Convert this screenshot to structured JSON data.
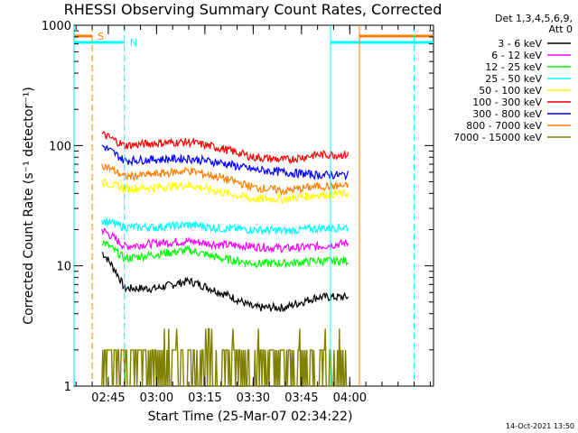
{
  "chart_data": {
    "type": "line",
    "title": "RHESSI Observing Summary Count Rates, Corrected",
    "xlabel": "Start Time (25-Mar-07 02:34:22)",
    "ylabel": "Corrected Count Rate (s⁻¹ detector⁻¹)",
    "x_axis_start": "02:34:22",
    "x_axis_end": "04:26:00",
    "xticks": [
      "02:45",
      "03:00",
      "03:15",
      "03:30",
      "03:45",
      "04:00"
    ],
    "ylim": [
      1,
      1000
    ],
    "yscale": "log",
    "yticks": [
      "1",
      "10",
      "100",
      "1000"
    ],
    "legend": {
      "placement": "right",
      "header": [
        "Det 1,3,4,5,6,9,",
        "Att 0"
      ],
      "entries": [
        "3 - 6 keV",
        "6 - 12 keV",
        "12 - 25 keV",
        "25 - 50 keV",
        "50 - 100 keV",
        "100 - 300 keV",
        "300 - 800 keV",
        "800 - 7000 keV",
        "7000 - 15000 keV"
      ]
    },
    "x": [
      "02:43:00",
      "02:50:00",
      "03:00:00",
      "03:10:00",
      "03:20:00",
      "03:30:00",
      "03:40:00",
      "03:50:00",
      "03:59:30"
    ],
    "series": [
      {
        "name": "3 - 6 keV",
        "color": "#000000",
        "values": [
          13,
          6.5,
          6.5,
          7.5,
          6,
          4.5,
          4.5,
          5.5,
          5.5
        ]
      },
      {
        "name": "6 - 12 keV",
        "color": "#ff00ff",
        "values": [
          20,
          14.5,
          15.5,
          16,
          15,
          14.5,
          14,
          14.5,
          15.5
        ]
      },
      {
        "name": "12 - 25 keV",
        "color": "#00ff00",
        "values": [
          16,
          11.5,
          12.5,
          13.5,
          11.5,
          10.5,
          10.5,
          11,
          11
        ]
      },
      {
        "name": "25 - 50 keV",
        "color": "#00ffff",
        "values": [
          24,
          21,
          21,
          22,
          20.5,
          20,
          19.5,
          20.5,
          21
        ]
      },
      {
        "name": "50 - 100 keV",
        "color": "#ffff00",
        "values": [
          50,
          44,
          45,
          47,
          41,
          36,
          36,
          39,
          40
        ]
      },
      {
        "name": "100 - 300 keV",
        "color": "#ff0000",
        "values": [
          125,
          100,
          105,
          107,
          95,
          80,
          76,
          84,
          84
        ]
      },
      {
        "name": "300 - 800 keV",
        "color": "#0000ff",
        "values": [
          100,
          75,
          77,
          78,
          72,
          63,
          60,
          57,
          57
        ]
      },
      {
        "name": "800 - 7000 keV",
        "color": "#ff8000",
        "values": [
          70,
          55,
          58,
          62,
          54,
          45,
          42,
          46,
          46
        ]
      },
      {
        "name": "7000 - 15000 keV",
        "color": "#808000",
        "values": [
          2,
          2,
          2,
          2.5,
          2,
          2,
          2,
          2,
          2
        ]
      }
    ],
    "annotations": [
      {
        "label": "S",
        "color": "#ff8000",
        "style": "dashed",
        "x": "02:40:00"
      },
      {
        "label": "N",
        "color": "#00ffff",
        "style": "dashed",
        "x": "02:50:00"
      }
    ],
    "bars": [
      {
        "label": "S",
        "color": "#ff8000",
        "from": "02:34:22",
        "to": "02:40:00"
      },
      {
        "label": "N",
        "color": "#00ffff",
        "from": "02:34:22",
        "to": "02:50:00"
      },
      {
        "label": "",
        "color": "#ff8000",
        "from": "04:03:00",
        "to": "04:26:00"
      },
      {
        "label": "",
        "color": "#00ffff",
        "from": "03:54:00",
        "to": "04:26:00"
      }
    ],
    "footer": "14-Oct-2021 13:50"
  }
}
